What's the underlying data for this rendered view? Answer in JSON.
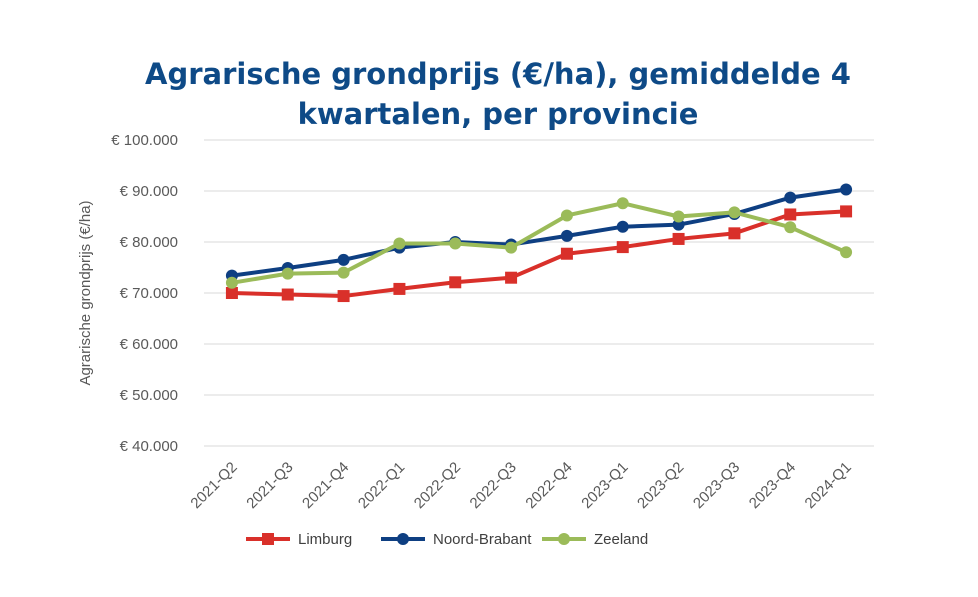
{
  "chart_data": {
    "type": "line",
    "title": "Agrarische grondprijs (€/ha), gemiddelde 4 kwartalen, per provincie",
    "title_lines": [
      "Agrarische grondprijs (€/ha), gemiddelde 4",
      "kwartalen, per provincie"
    ],
    "ylabel": "Agrarische grondprijs (€/ha)",
    "xlabel": "",
    "categories": [
      "2021-Q2",
      "2021-Q3",
      "2021-Q4",
      "2022-Q1",
      "2022-Q2",
      "2022-Q3",
      "2022-Q4",
      "2023-Q1",
      "2023-Q2",
      "2023-Q3",
      "2023-Q4",
      "2024-Q1"
    ],
    "ylim": [
      40000,
      100000
    ],
    "yticks": [
      40000,
      50000,
      60000,
      70000,
      80000,
      90000,
      100000
    ],
    "ytick_labels": [
      "€ 40.000",
      "€ 50.000",
      "€ 60.000",
      "€ 70.000",
      "€ 80.000",
      "€ 90.000",
      "€ 100.000"
    ],
    "grid": true,
    "legend_position": "bottom",
    "series": [
      {
        "name": "Limburg",
        "color": "#d9302a",
        "marker": "square",
        "values": [
          70000,
          69700,
          69400,
          70800,
          72100,
          73000,
          77700,
          79000,
          80600,
          81700,
          85400,
          86000
        ]
      },
      {
        "name": "Noord-Brabant",
        "color": "#0e3f82",
        "marker": "circle",
        "values": [
          73400,
          74900,
          76500,
          78900,
          80000,
          79500,
          81200,
          83000,
          83400,
          85500,
          88700,
          90300
        ]
      },
      {
        "name": "Zeeland",
        "color": "#9bbb59",
        "marker": "circle",
        "values": [
          72000,
          73800,
          74000,
          79700,
          79700,
          78900,
          85200,
          87600,
          85000,
          85800,
          82900,
          78000
        ]
      }
    ]
  }
}
